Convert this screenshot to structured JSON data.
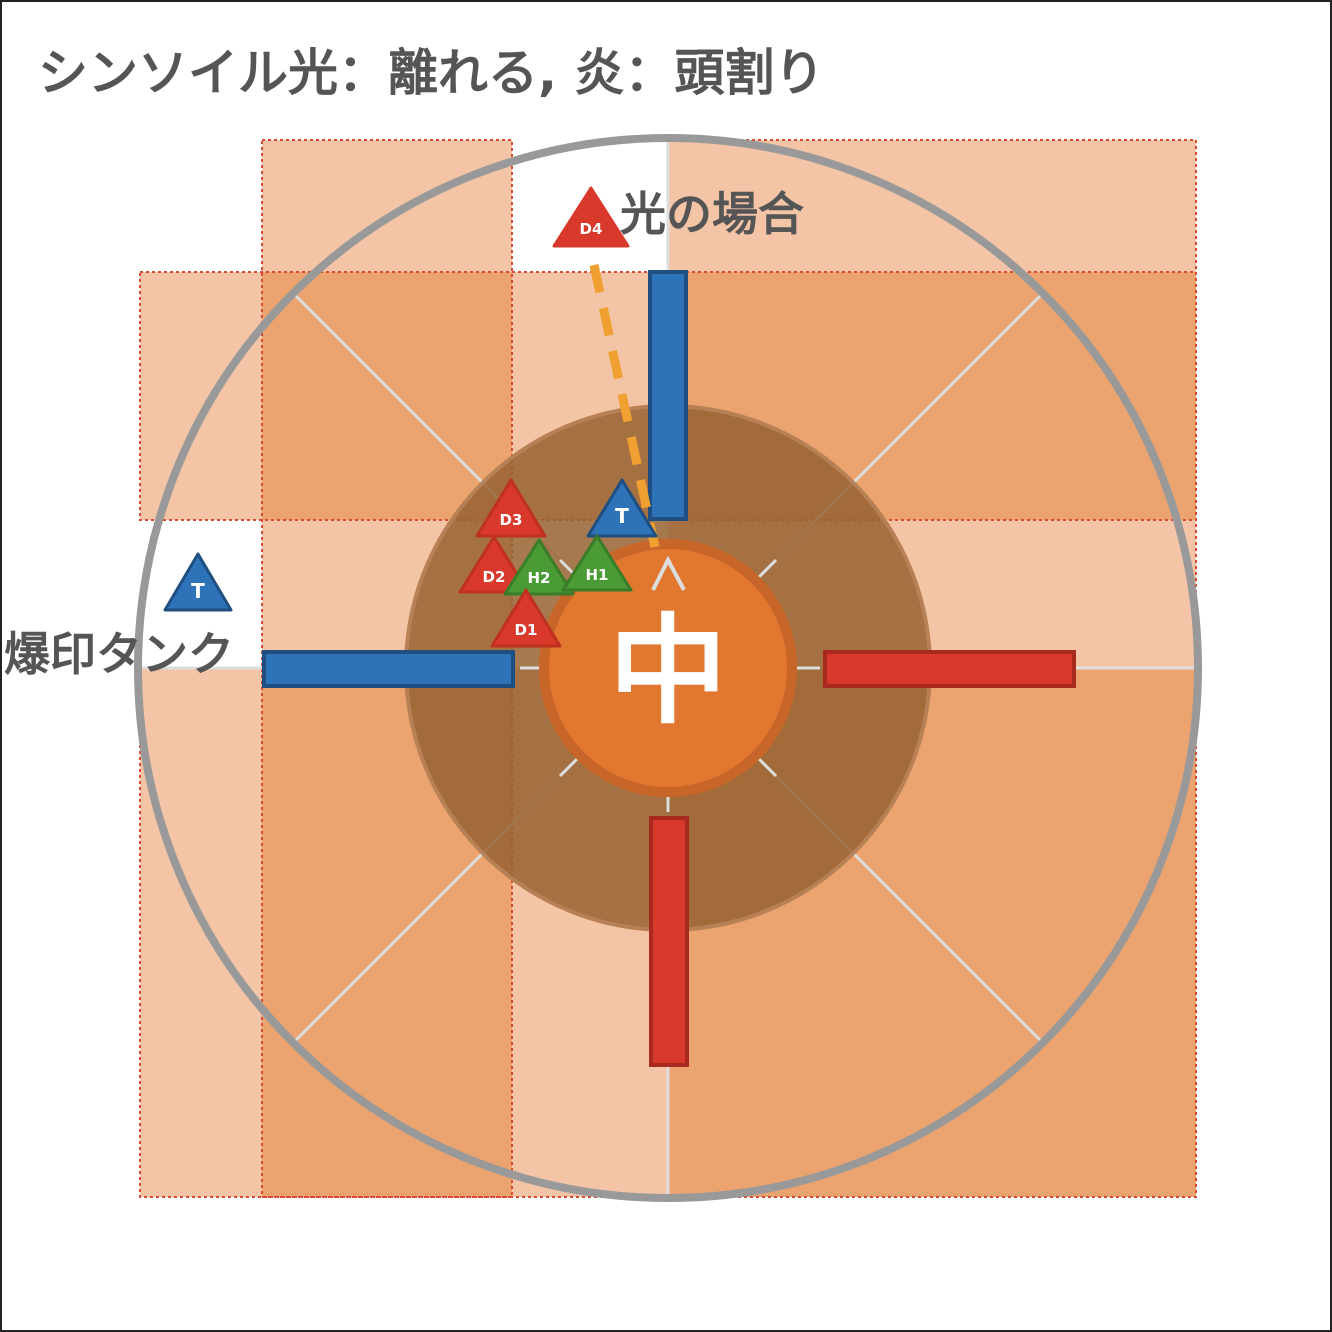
{
  "title": "シンソイル光：離れる, 炎：頭割り",
  "labels": {
    "light_case": "光の場合",
    "bomb_tank": "爆印タンク",
    "center": "中"
  },
  "markers": {
    "d4": "D4",
    "d3": "D3",
    "d2": "D2",
    "d1": "D1",
    "h1": "H1",
    "h2": "H2",
    "t_center": "T",
    "t_outside": "T"
  },
  "colors": {
    "zone_light": "#f3c5a6",
    "zone_mid": "#eba470",
    "inner_ring": "#976130",
    "center_circle": "#e27730",
    "arena_border": "#999999",
    "blue_bar": "#2e73b8",
    "red_bar": "#d9392a",
    "dps_marker": "#d9392a",
    "healer_marker": "#4a9a35",
    "tank_marker": "#2e73b8",
    "dashed_path": "#f0a030"
  }
}
